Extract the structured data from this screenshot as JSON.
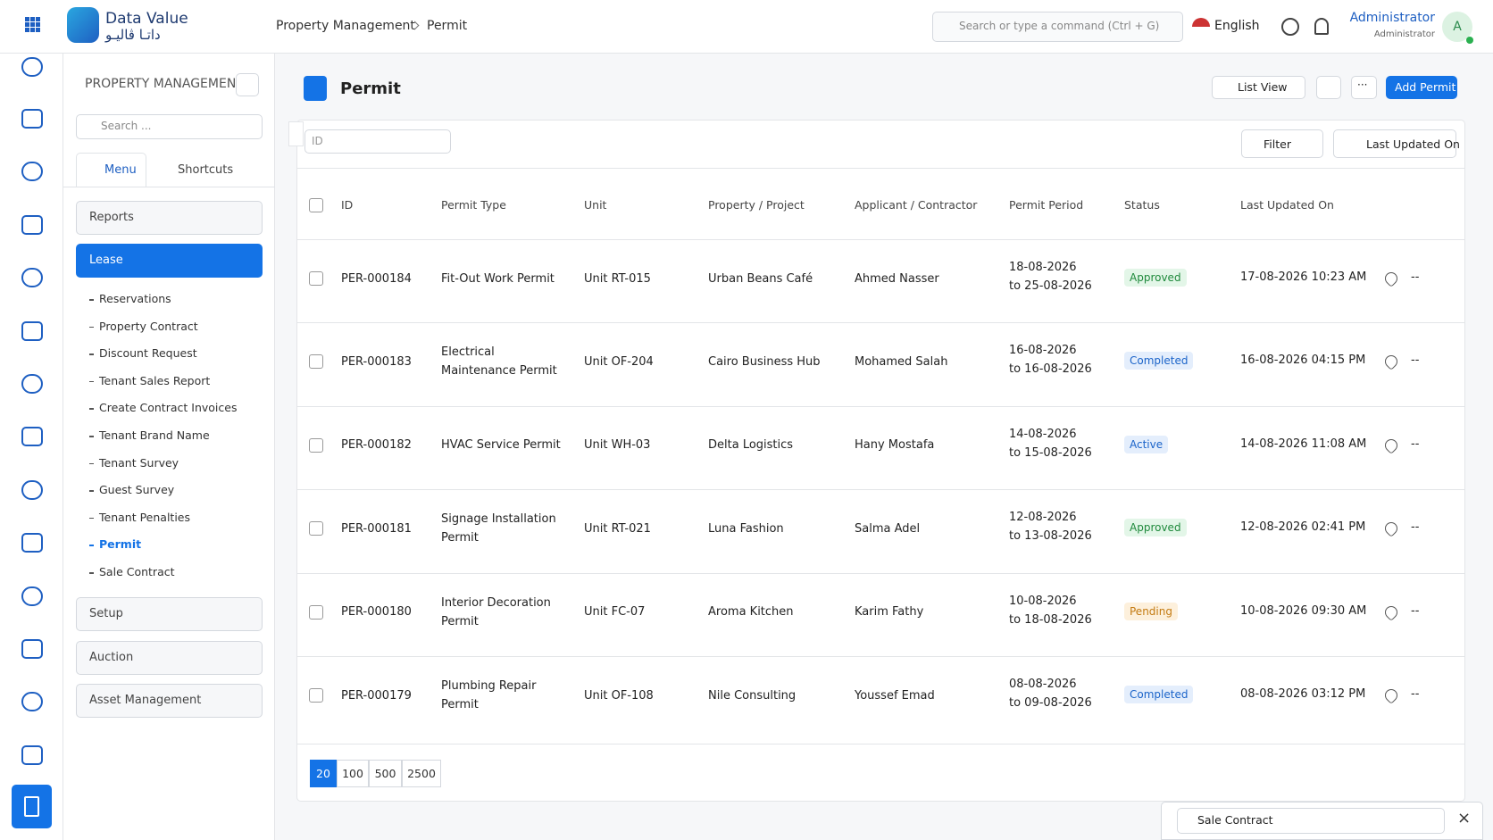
{
  "header": {
    "logo_text": "Data Value",
    "logo_arabic": "داتـا ڤاليـو",
    "breadcrumb": [
      "Property Management",
      "Permit"
    ],
    "search_placeholder": "Search or type a command (Ctrl + G)",
    "language": "English",
    "user_name": "Administrator",
    "user_role": "Administrator",
    "avatar": "A"
  },
  "sidebar": {
    "title": "PROPERTY MANAGEMENT",
    "search_placeholder": "Search ...",
    "tabs": [
      "Menu",
      "Shortcuts"
    ],
    "sections_before": [
      "Reports"
    ],
    "open_section": {
      "label": "Lease",
      "items": [
        "Reservations",
        "Property Contract",
        "Discount Request",
        "Tenant Sales Report",
        "Create Contract Invoices",
        "Tenant Brand Name",
        "Tenant Survey",
        "Guest Survey",
        "Tenant Penalties",
        "Permit",
        "Sale Contract"
      ],
      "active_item": 9
    },
    "sections_after": [
      "Setup",
      "Auction",
      "Asset Management"
    ]
  },
  "page": {
    "title": "Permit",
    "view_button": "List View",
    "more_button": "···",
    "add_button": "Add Permit",
    "id_filter_placeholder": "ID",
    "filter_button": "Filter",
    "sort_button": "Last Updated On"
  },
  "table": {
    "columns": [
      "ID",
      "Permit Type",
      "Unit",
      "Property / Project",
      "Applicant / Contractor",
      "Permit Period",
      "Status",
      "Last Updated On"
    ],
    "rows": [
      {
        "id": "PER-000184",
        "type": "Fit-Out Work Permit",
        "unit": "Unit RT-015",
        "property": "Urban Beans Café",
        "applicant": "Ahmed Nasser",
        "period": [
          "18-08-2026",
          "to 25-08-2026"
        ],
        "status": "Approved",
        "status_color": "green",
        "updated": "17-08-2026 10:23 AM",
        "extra": "--"
      },
      {
        "id": "PER-000183",
        "type": "Electrical Maintenance Permit",
        "unit": "Unit OF-204",
        "property": "Cairo Business Hub",
        "applicant": "Mohamed Salah",
        "period": [
          "16-08-2026",
          "to 16-08-2026"
        ],
        "status": "Completed",
        "status_color": "blue",
        "updated": "16-08-2026 04:15 PM",
        "extra": "--"
      },
      {
        "id": "PER-000182",
        "type": "HVAC Service Permit",
        "unit": "Unit WH-03",
        "property": "Delta Logistics",
        "applicant": "Hany Mostafa",
        "period": [
          "14-08-2026",
          "to 15-08-2026"
        ],
        "status": "Active",
        "status_color": "blue",
        "updated": "14-08-2026 11:08 AM",
        "extra": "--"
      },
      {
        "id": "PER-000181",
        "type": "Signage Installation Permit",
        "unit": "Unit RT-021",
        "property": "Luna Fashion",
        "applicant": "Salma Adel",
        "period": [
          "12-08-2026",
          "to 13-08-2026"
        ],
        "status": "Approved",
        "status_color": "green",
        "updated": "12-08-2026 02:41 PM",
        "extra": "--"
      },
      {
        "id": "PER-000180",
        "type": "Interior Decoration Permit",
        "unit": "Unit FC-07",
        "property": "Aroma Kitchen",
        "applicant": "Karim Fathy",
        "period": [
          "10-08-2026",
          "to 18-08-2026"
        ],
        "status": "Pending",
        "status_color": "orange",
        "updated": "10-08-2026 09:30 AM",
        "extra": "--"
      },
      {
        "id": "PER-000179",
        "type": "Plumbing Repair Permit",
        "unit": "Unit OF-108",
        "property": "Nile Consulting",
        "applicant": "Youssef Emad",
        "period": [
          "08-08-2026",
          "to 09-08-2026"
        ],
        "status": "Completed",
        "status_color": "blue",
        "updated": "08-08-2026 03:12 PM",
        "extra": "--"
      }
    ]
  },
  "pagination": {
    "page_sizes": [
      20,
      100,
      500,
      2500
    ],
    "selected": 0
  },
  "popup": {
    "label": "Sale Contract"
  }
}
